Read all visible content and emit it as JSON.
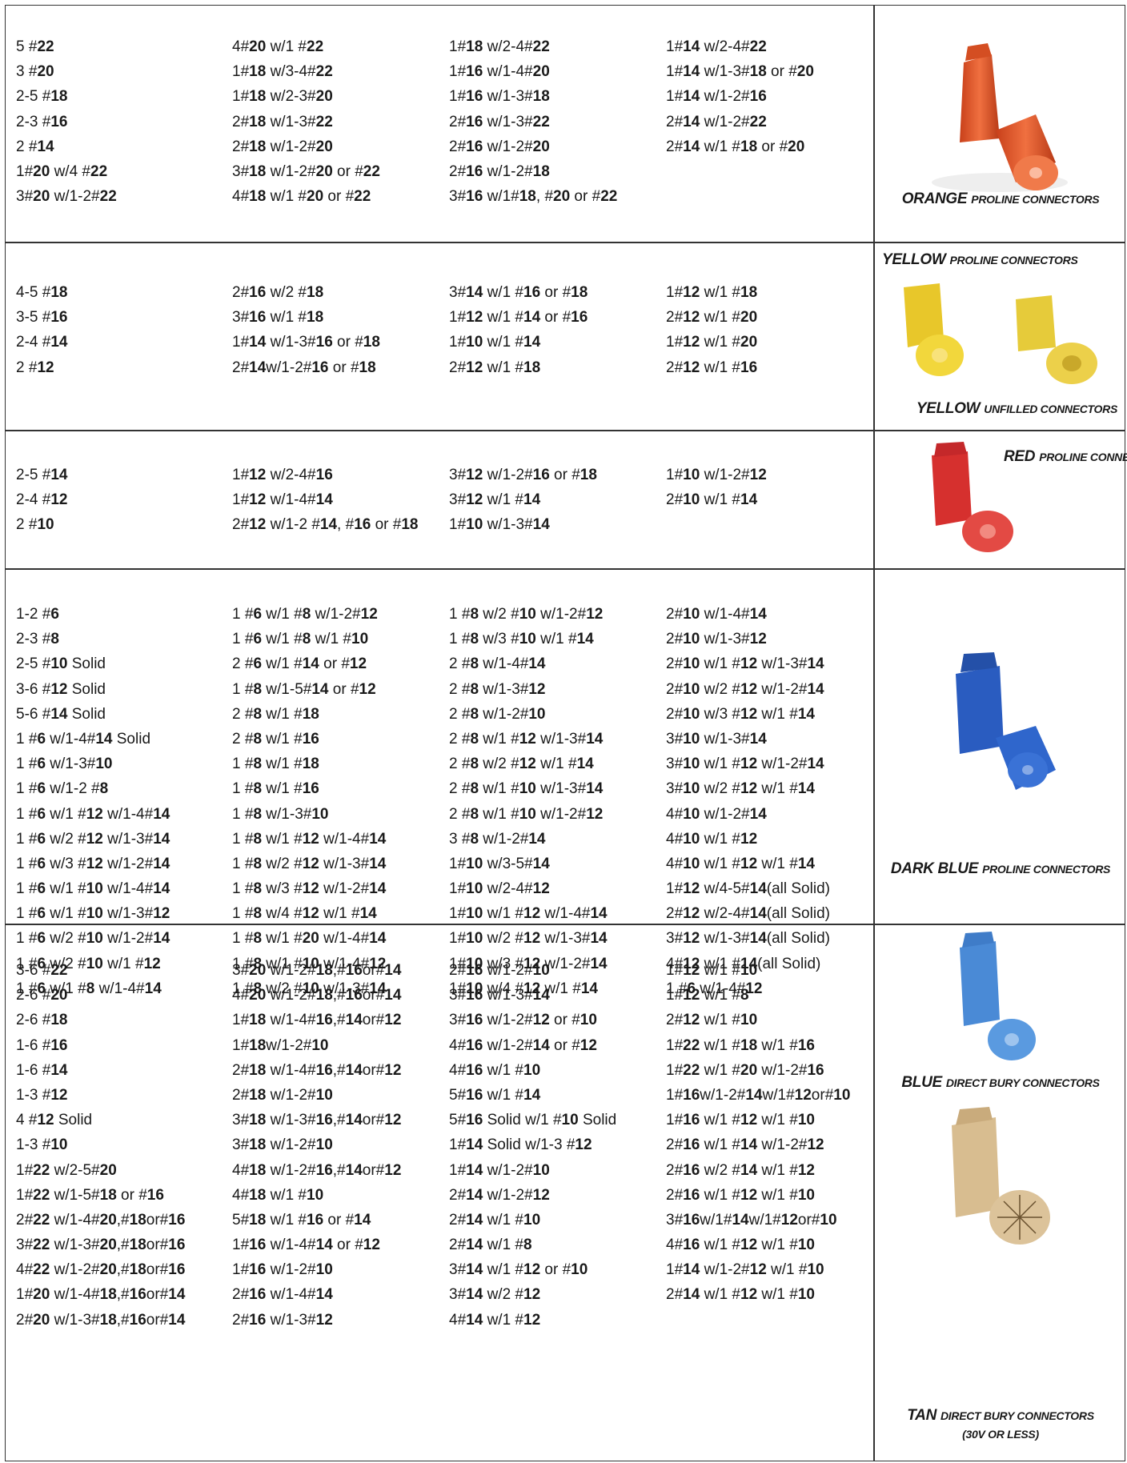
{
  "sections": [
    {
      "columns": [
        [
          "5 #22",
          "3 #20",
          "2-5 #18",
          "2-3 #16",
          "2 #14",
          "1#20 w/4 #22",
          "3#20 w/1-2#22"
        ],
        [
          "4#20 w/1 #22",
          "1#18 w/3-4#22",
          "1#18 w/2-3#20",
          "2#18 w/1-3#22",
          "2#18 w/1-2#20",
          "3#18 w/1-2#20 or #22",
          "4#18 w/1 #20 or #22"
        ],
        [
          "1#18 w/2-4#22",
          "1#16 w/1-4#20",
          "1#16 w/1-3#18",
          "2#16 w/1-3#22",
          "2#16 w/1-2#20",
          "2#16 w/1-2#18",
          "3#16 w/1#18, #20 or #22"
        ],
        [
          "1#14 w/2-4#22",
          "1#14 w/1-3#18 or #20",
          "1#14 w/1-2#16",
          "2#14 w/1-2#22",
          "2#14 w/1 #18 or #20"
        ]
      ],
      "labels": [
        {
          "main": "ORANGE",
          "sub": "PROLINE CONNECTORS"
        }
      ],
      "icons": [
        "orange-connector-icon"
      ],
      "colors": [
        "#e8582a"
      ]
    },
    {
      "columns": [
        [
          "4-5 #18",
          "3-5 #16",
          "2-4 #14",
          "2 #12"
        ],
        [
          "2#16 w/2 #18",
          "3#16 w/1 #18",
          "1#14 w/1-3#16 or #18",
          "2#14w/1-2#16 or #18"
        ],
        [
          "3#14 w/1 #16 or #18",
          "1#12 w/1 #14 or #16",
          "1#10 w/1 #14",
          "2#12 w/1 #18"
        ],
        [
          "1#12 w/1 #18",
          "2#12 w/1 #20",
          "1#12 w/1 #20",
          "2#12 w/1 #16"
        ]
      ],
      "labels": [
        {
          "main": "YELLOW",
          "sub": "PROLINE CONNECTORS"
        },
        {
          "main": "YELLOW",
          "sub": "UNFILLED CONNECTORS"
        }
      ],
      "icons": [
        "yellow-connector-icon"
      ],
      "colors": [
        "#f1d43a"
      ]
    },
    {
      "columns": [
        [
          "2-5 #14",
          "2-4 #12",
          "2 #10"
        ],
        [
          "1#12 w/2-4#16",
          "1#12 w/1-4#14",
          "2#12 w/1-2 #14, #16 or #18"
        ],
        [
          "3#12 w/1-2#16 or #18",
          "3#12 w/1 #14",
          "1#10 w/1-3#14"
        ],
        [
          "1#10 w/1-2#12",
          "2#10 w/1 #14"
        ]
      ],
      "labels": [
        {
          "main": "RED",
          "sub": "PROLINE CONNECTORS"
        }
      ],
      "icons": [
        "red-connector-icon"
      ],
      "colors": [
        "#e03a36"
      ]
    },
    {
      "columns": [
        [
          "1-2 #6",
          "2-3 #8",
          "2-5 #10 Solid",
          "3-6 #12 Solid",
          "5-6 #14 Solid",
          "1 #6 w/1-4#14 Solid",
          "1 #6 w/1-3#10",
          "1 #6 w/1-2 #8",
          "1 #6 w/1 #12 w/1-4#14",
          "1 #6 w/2 #12 w/1-3#14",
          "1 #6 w/3 #12 w/1-2#14",
          "1 #6 w/1 #10 w/1-4#14",
          "1 #6 w/1 #10 w/1-3#12",
          "1 #6 w/2 #10 w/1-2#14",
          "1 #6 w/2 #10 w/1 #12",
          "1 #6 w/1 #8 w/1-4#14"
        ],
        [
          "1 #6 w/1 #8 w/1-2#12",
          "1 #6 w/1 #8 w/1 #10",
          "2 #6 w/1 #14 or #12",
          "1 #8 w/1-5#14 or #12",
          "2 #8 w/1 #18",
          "2 #8 w/1 #16",
          "1 #8 w/1 #18",
          "1 #8 w/1 #16",
          "1 #8 w/1-3#10",
          "1 #8 w/1 #12 w/1-4#14",
          "1 #8 w/2 #12 w/1-3#14",
          "1 #8 w/3 #12 w/1-2#14",
          "1 #8 w/4 #12 w/1 #14",
          "1 #8 w/1 #20 w/1-4#14",
          "1 #8 w/1 #10 w/1-4#12",
          "1 #8 w/2 #10 w/1-3#14"
        ],
        [
          "1 #8 w/2 #10 w/1-2#12",
          "1 #8 w/3 #10 w/1 #14",
          "2 #8 w/1-4#14",
          "2 #8 w/1-3#12",
          "2 #8 w/1-2#10",
          "2 #8 w/1 #12 w/1-3#14",
          "2 #8 w/2 #12 w/1 #14",
          "2 #8 w/1 #10 w/1-3#14",
          "2 #8 w/1 #10 w/1-2#12",
          "3 #8 w/1-2#14",
          "1#10 w/3-5#14",
          "1#10 w/2-4#12",
          "1#10 w/1 #12 w/1-4#14",
          "1#10 w/2 #12 w/1-3#14",
          "1#10 w/3 #12 w/1-2#14",
          "1#10 w/4 #12 w/1 #14"
        ],
        [
          "2#10 w/1-4#14",
          "2#10 w/1-3#12",
          "2#10 w/1 #12 w/1-3#14",
          "2#10 w/2 #12 w/1-2#14",
          "2#10 w/3 #12 w/1 #14",
          "3#10 w/1-3#14",
          "3#10 w/1 #12 w/1-2#14",
          "3#10 w/2 #12 w/1 #14",
          "4#10 w/1-2#14",
          "4#10 w/1 #12",
          "4#10 w/1 #12 w/1 #14",
          "1#12 w/4-5#14(all Solid)",
          "2#12 w/2-4#14(all Solid)",
          "3#12 w/1-3#14(all Solid)",
          "4#12 w/1 #14(all Solid)",
          "1 #6 w/1-4#12"
        ]
      ],
      "labels": [
        {
          "main": "DARK BLUE",
          "sub": "PROLINE CONNECTORS"
        }
      ],
      "icons": [
        "dark-blue-connector-icon"
      ],
      "colors": [
        "#2a5fc4"
      ]
    },
    {
      "columns": [
        [
          "3-6 #22",
          "2-6 #20",
          "2-6 #18",
          "1-6 #16",
          "1-6 #14",
          "1-3 #12",
          "4 #12 Solid",
          "1-3 #10",
          "1#22 w/2-5#20",
          "1#22 w/1-5#18 or #16",
          "2#22 w/1-4#20,#18or#16",
          "3#22 w/1-3#20,#18or#16",
          "4#22 w/1-2#20,#18or#16",
          "1#20 w/1-4#18,#16or#14",
          "2#20 w/1-3#18,#16or#14"
        ],
        [
          "3#20 w/1-2#18,#16or#14",
          "4#20 w/1-2#18,#16or#14",
          "1#18 w/1-4#16,#14or#12",
          "1#18w/1-2#10",
          "2#18 w/1-4#16,#14or#12",
          "2#18 w/1-2#10",
          "3#18 w/1-3#16,#14or#12",
          "3#18 w/1-2#10",
          "4#18 w/1-2#16,#14or#12",
          "4#18 w/1 #10",
          "5#18 w/1 #16 or #14",
          "1#16 w/1-4#14 or #12",
          "1#16 w/1-2#10",
          "2#16 w/1-4#14",
          "2#16 w/1-3#12"
        ],
        [
          "2#16 w/1-2#10",
          "3#16 w/1-3#14",
          "3#16 w/1-2#12 or #10",
          "4#16 w/1-2#14 or #12",
          "4#16 w/1 #10",
          "5#16 w/1 #14",
          "5#16 Solid w/1 #10 Solid",
          "1#14 Solid w/1-3 #12",
          "1#14 w/1-2#10",
          "2#14 w/1-2#12",
          "2#14 w/1 #10",
          "2#14 w/1 #8",
          "3#14 w/1 #12 or #10",
          "3#14 w/2 #12",
          "4#14 w/1 #12"
        ],
        [
          "1#12 w/1 #10",
          "1#12 w/1 #8",
          "2#12 w/1 #10",
          "1#22 w/1 #18 w/1 #16",
          "1#22 w/1 #20 w/1-2#16",
          "1#16w/1-2#14w/1#12or#10",
          "1#16 w/1 #12 w/1 #10",
          "2#16 w/1 #14 w/1-2#12",
          "2#16 w/2 #14 w/1 #12",
          "2#16 w/1 #12 w/1 #10",
          "3#16w/1#14w/1#12or#10",
          "4#16 w/1 #12 w/1 #10",
          "1#14 w/1-2#12 w/1 #10",
          "2#14 w/1 #12 w/1 #10"
        ]
      ],
      "labels": [
        {
          "main": "BLUE",
          "sub": "DIRECT BURY CONNECTORS"
        },
        {
          "main": "TAN",
          "sub": "DIRECT BURY CONNECTORS",
          "note": "(30V OR LESS)"
        }
      ],
      "icons": [
        "blue-connector-icon",
        "tan-connector-icon"
      ],
      "colors": [
        "#4a90d8",
        "#d9bf94"
      ]
    }
  ]
}
